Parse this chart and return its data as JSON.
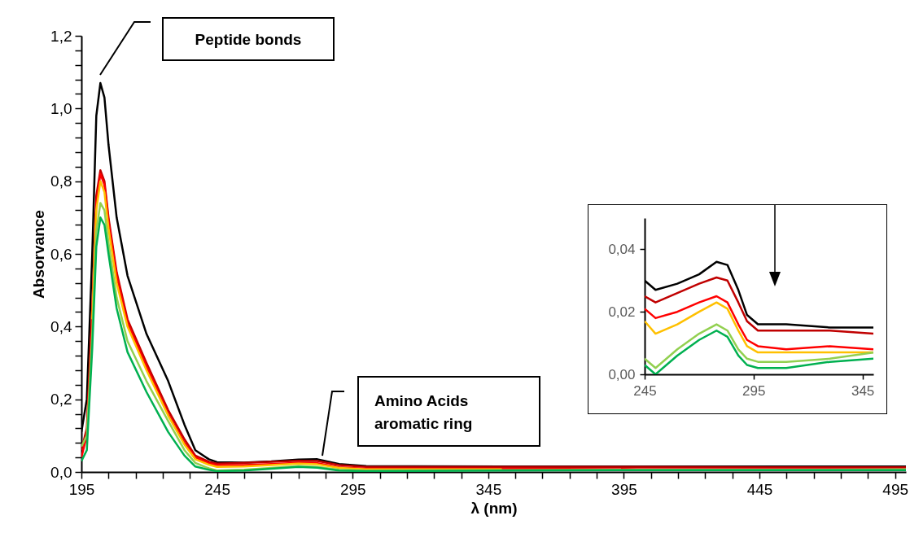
{
  "chart_data": [
    {
      "type": "line",
      "xlabel": "λ (nm)",
      "ylabel": "Absorvance",
      "x": [
        195,
        197,
        199,
        200.5,
        202,
        203.5,
        205,
        208,
        212,
        219,
        227,
        233,
        237,
        242,
        245,
        255,
        265,
        275,
        282,
        290,
        300,
        350,
        400,
        450,
        499
      ],
      "series": [
        {
          "color": "#000000",
          "values": [
            0.11,
            0.2,
            0.6,
            0.98,
            1.07,
            1.03,
            0.9,
            0.7,
            0.54,
            0.38,
            0.25,
            0.13,
            0.06,
            0.035,
            0.027,
            0.026,
            0.029,
            0.034,
            0.035,
            0.022,
            0.016,
            0.015,
            0.015,
            0.015,
            0.015
          ]
        },
        {
          "color": "#c00000",
          "values": [
            0.06,
            0.12,
            0.45,
            0.76,
            0.83,
            0.8,
            0.7,
            0.55,
            0.42,
            0.3,
            0.17,
            0.09,
            0.045,
            0.028,
            0.023,
            0.025,
            0.028,
            0.031,
            0.03,
            0.019,
            0.014,
            0.014,
            0.014,
            0.013,
            0.013
          ]
        },
        {
          "color": "#ff0000",
          "values": [
            0.04,
            0.1,
            0.43,
            0.74,
            0.82,
            0.79,
            0.69,
            0.54,
            0.41,
            0.29,
            0.16,
            0.08,
            0.04,
            0.024,
            0.019,
            0.019,
            0.022,
            0.025,
            0.024,
            0.013,
            0.009,
            0.009,
            0.008,
            0.008,
            0.008
          ]
        },
        {
          "color": "#ffc000",
          "values": [
            null,
            null,
            0.42,
            0.72,
            0.8,
            0.77,
            0.67,
            0.52,
            0.4,
            0.28,
            0.155,
            0.075,
            0.035,
            0.02,
            0.014,
            0.015,
            0.019,
            0.023,
            0.021,
            0.011,
            0.007,
            0.007,
            null,
            null,
            null
          ]
        },
        {
          "color": "#92d050",
          "values": [
            0.07,
            0.1,
            0.38,
            0.66,
            0.74,
            0.72,
            0.63,
            0.48,
            0.36,
            0.25,
            0.14,
            0.06,
            0.025,
            0.01,
            0.004,
            0.006,
            0.011,
            0.016,
            0.014,
            0.006,
            0.004,
            0.005,
            0.006,
            0.006,
            0.007
          ]
        },
        {
          "color": "#00b050",
          "values": [
            0.03,
            0.06,
            0.34,
            0.62,
            0.7,
            0.68,
            0.6,
            0.45,
            0.33,
            0.22,
            0.11,
            0.045,
            0.015,
            0.006,
            0.002,
            0.004,
            0.009,
            0.014,
            0.012,
            0.004,
            0.002,
            0.004,
            0.005,
            0.005,
            0.005
          ]
        }
      ],
      "xlim": [
        195,
        499
      ],
      "xticks": [
        195,
        {
          "value": 205,
          "label": null
        },
        {
          "value": 215,
          "label": null
        },
        {
          "value": 225,
          "label": null
        },
        {
          "value": 235,
          "label": null
        },
        245,
        {
          "value": 255,
          "label": null
        },
        {
          "value": 265,
          "label": null
        },
        {
          "value": 275,
          "label": null
        },
        {
          "value": 285,
          "label": null
        },
        295,
        {
          "value": 305,
          "label": null
        },
        {
          "value": 315,
          "label": null
        },
        {
          "value": 325,
          "label": null
        },
        {
          "value": 335,
          "label": null
        },
        345,
        {
          "value": 355,
          "label": null
        },
        {
          "value": 365,
          "label": null
        },
        {
          "value": 375,
          "label": null
        },
        {
          "value": 385,
          "label": null
        },
        395,
        {
          "value": 405,
          "label": null
        },
        {
          "value": 415,
          "label": null
        },
        {
          "value": 425,
          "label": null
        },
        {
          "value": 435,
          "label": null
        },
        445,
        {
          "value": 455,
          "label": null
        },
        {
          "value": 465,
          "label": null
        },
        {
          "value": 475,
          "label": null
        },
        {
          "value": 485,
          "label": null
        },
        495
      ],
      "ylim": [
        0,
        1.2
      ],
      "yticks": [
        {
          "value": 0,
          "label": "0,0"
        },
        {
          "value": 0.04,
          "label": null
        },
        {
          "value": 0.08,
          "label": null
        },
        {
          "value": 0.12,
          "label": null
        },
        {
          "value": 0.16,
          "label": null
        },
        {
          "value": 0.2,
          "label": "0,2"
        },
        {
          "value": 0.24,
          "label": null
        },
        {
          "value": 0.28,
          "label": null
        },
        {
          "value": 0.32,
          "label": null
        },
        {
          "value": 0.36,
          "label": null
        },
        {
          "value": 0.4,
          "label": "0,4"
        },
        {
          "value": 0.44,
          "label": null
        },
        {
          "value": 0.48,
          "label": null
        },
        {
          "value": 0.52,
          "label": null
        },
        {
          "value": 0.56,
          "label": null
        },
        {
          "value": 0.6,
          "label": "0,6"
        },
        {
          "value": 0.64,
          "label": null
        },
        {
          "value": 0.68,
          "label": null
        },
        {
          "value": 0.72,
          "label": null
        },
        {
          "value": 0.76,
          "label": null
        },
        {
          "value": 0.8,
          "label": "0,8"
        },
        {
          "value": 0.84,
          "label": null
        },
        {
          "value": 0.88,
          "label": null
        },
        {
          "value": 0.92,
          "label": null
        },
        {
          "value": 0.96,
          "label": null
        },
        {
          "value": 1.0,
          "label": "1,0"
        },
        {
          "value": 1.04,
          "label": null
        },
        {
          "value": 1.08,
          "label": null
        },
        {
          "value": 1.12,
          "label": null
        },
        {
          "value": 1.16,
          "label": null
        },
        {
          "value": 1.2,
          "label": "1,2"
        }
      ],
      "annotations": [
        "Peptide bonds",
        "Amino Acids\naromatic ring"
      ],
      "grid": false,
      "legend": false
    },
    {
      "type": "line",
      "x": [
        245,
        250,
        260,
        270,
        278,
        283,
        288,
        292,
        297,
        310,
        330,
        350
      ],
      "series": [
        {
          "color": "#000000",
          "values": [
            0.03,
            0.027,
            0.029,
            0.032,
            0.036,
            0.035,
            0.027,
            0.019,
            0.016,
            0.016,
            0.015,
            0.015
          ]
        },
        {
          "color": "#c00000",
          "values": [
            0.025,
            0.023,
            0.026,
            0.029,
            0.031,
            0.03,
            0.023,
            0.017,
            0.014,
            0.014,
            0.014,
            0.013
          ]
        },
        {
          "color": "#ff0000",
          "values": [
            0.021,
            0.018,
            0.02,
            0.023,
            0.025,
            0.023,
            0.016,
            0.011,
            0.009,
            0.008,
            0.009,
            0.008
          ]
        },
        {
          "color": "#ffc000",
          "values": [
            0.017,
            0.013,
            0.016,
            0.02,
            0.023,
            0.021,
            0.014,
            0.009,
            0.007,
            0.007,
            0.007,
            0.007
          ]
        },
        {
          "color": "#92d050",
          "values": [
            0.005,
            0.002,
            0.008,
            0.013,
            0.016,
            0.014,
            0.008,
            0.005,
            0.004,
            0.004,
            0.005,
            0.007
          ]
        },
        {
          "color": "#00b050",
          "values": [
            0.003,
            0.0,
            0.006,
            0.011,
            0.014,
            0.012,
            0.006,
            0.003,
            0.002,
            0.002,
            0.004,
            0.005
          ]
        }
      ],
      "xlim": [
        245,
        350
      ],
      "xticks": [
        245,
        295,
        345
      ],
      "ylim": [
        0,
        0.05
      ],
      "yticks": [
        {
          "value": 0,
          "label": "0,00"
        },
        {
          "value": 0.02,
          "label": "0,02"
        },
        {
          "value": 0.04,
          "label": "0,04"
        }
      ],
      "grid": false,
      "legend": false
    }
  ]
}
